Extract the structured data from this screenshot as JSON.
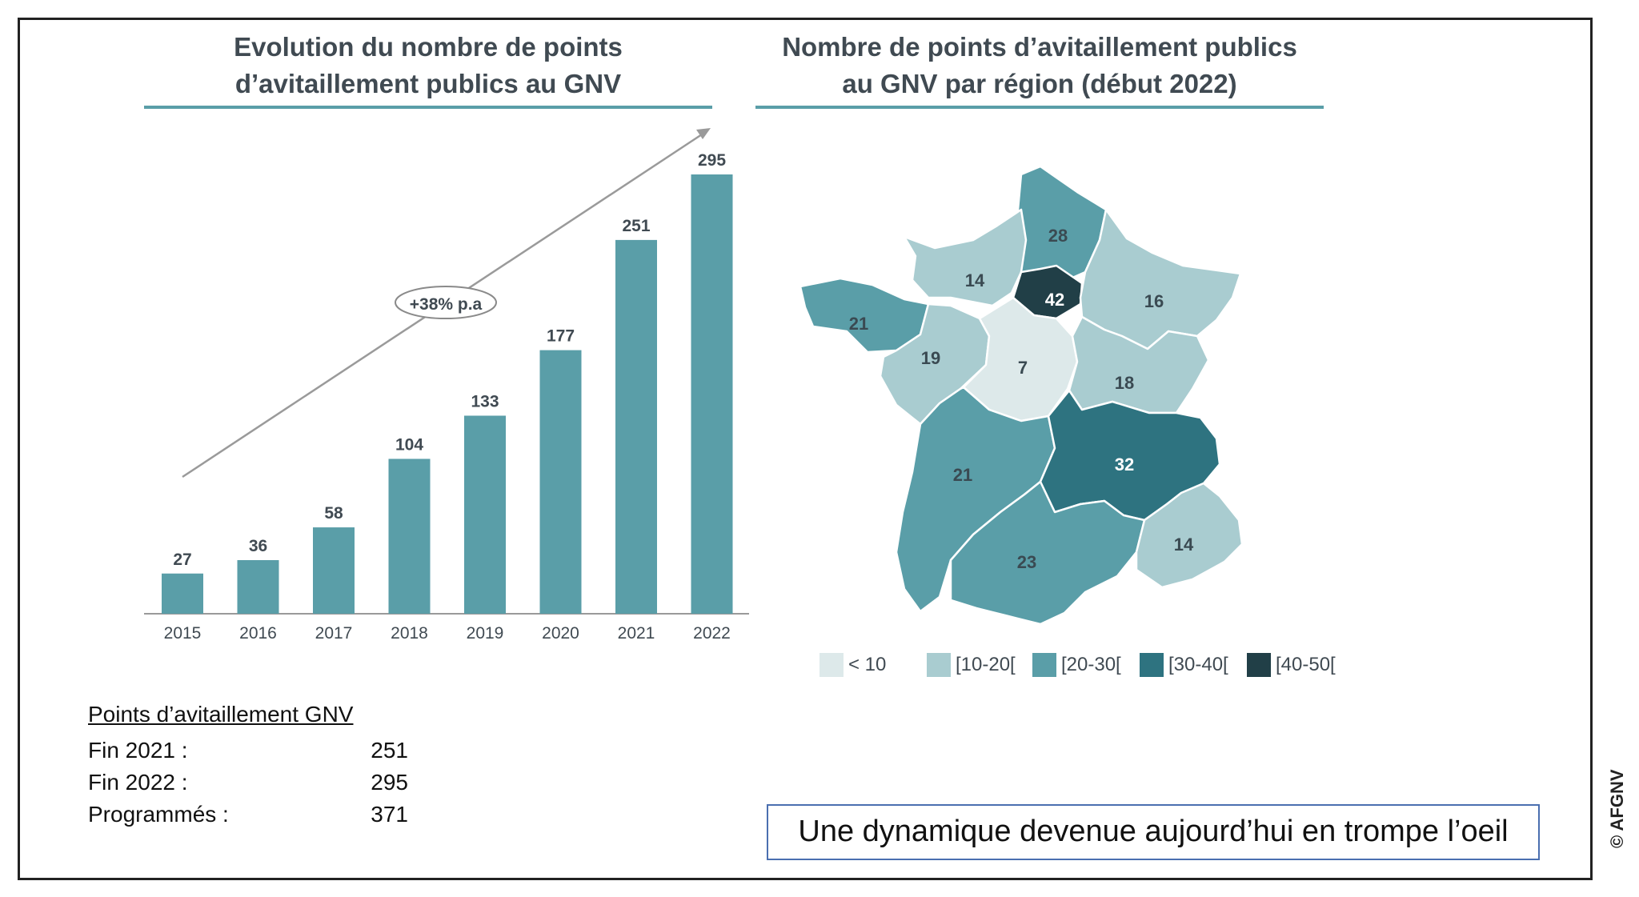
{
  "chart_data": [
    {
      "type": "bar",
      "title": "Evolution du nombre de points d’avitaillement publics au GNV",
      "title_lines": [
        "Evolution du nombre de points",
        "d’avitaillement publics au GNV"
      ],
      "categories": [
        "2015",
        "2016",
        "2017",
        "2018",
        "2019",
        "2020",
        "2021",
        "2022"
      ],
      "values": [
        27,
        36,
        58,
        104,
        133,
        177,
        251,
        295
      ],
      "ylim": [
        0,
        295
      ],
      "xlabel": "",
      "ylabel": "",
      "bar_color": "#5a9ea8",
      "annotation": "+38% p.a"
    },
    {
      "type": "map",
      "title": "Nombre de points d’avitaillement publics au GNV par région (début 2022)",
      "title_lines": [
        "Nombre de points d’avitaillement publics",
        "au GNV par région (début 2022)"
      ],
      "regions": [
        {
          "name": "Hauts-de-France",
          "value": 28,
          "class": "[20-30["
        },
        {
          "name": "Normandie",
          "value": 14,
          "class": "[10-20["
        },
        {
          "name": "Île-de-France",
          "value": 42,
          "class": "[40-50["
        },
        {
          "name": "Grand Est",
          "value": 16,
          "class": "[10-20["
        },
        {
          "name": "Bretagne",
          "value": 21,
          "class": "[20-30["
        },
        {
          "name": "Pays de la Loire",
          "value": 19,
          "class": "[10-20["
        },
        {
          "name": "Centre-Val de Loire",
          "value": 7,
          "class": "< 10"
        },
        {
          "name": "Bourgogne-Franche-Comté",
          "value": 18,
          "class": "[10-20["
        },
        {
          "name": "Nouvelle-Aquitaine",
          "value": 21,
          "class": "[20-30["
        },
        {
          "name": "Auvergne-Rhône-Alpes",
          "value": 32,
          "class": "[30-40["
        },
        {
          "name": "Occitanie",
          "value": 23,
          "class": "[20-30["
        },
        {
          "name": "Provence-Alpes-Côte d'Azur",
          "value": 14,
          "class": "[10-20["
        }
      ],
      "legend": [
        {
          "label": "< 10",
          "color": "#dde9ea"
        },
        {
          "label": "[10-20[",
          "color": "#a9ccd0"
        },
        {
          "label": "[20-30[",
          "color": "#5a9ea8"
        },
        {
          "label": "[30-40[",
          "color": "#2e7380"
        },
        {
          "label": "[40-50[",
          "color": "#213f47"
        }
      ]
    }
  ],
  "summary": {
    "heading": "Points d’avitaillement GNV",
    "rows": [
      {
        "label": "Fin 2021 :",
        "value": "251"
      },
      {
        "label": "Fin 2022 :",
        "value": "295"
      },
      {
        "label": "Programmés :",
        "value": "371"
      }
    ]
  },
  "tagline": "Une dynamique devenue aujourd’hui en trompe l’oeil",
  "copyright": "© AFGNV",
  "colors": {
    "accent": "#5a9ea8",
    "title_text": "#404a52",
    "tagline_border": "#4a6fb0"
  }
}
